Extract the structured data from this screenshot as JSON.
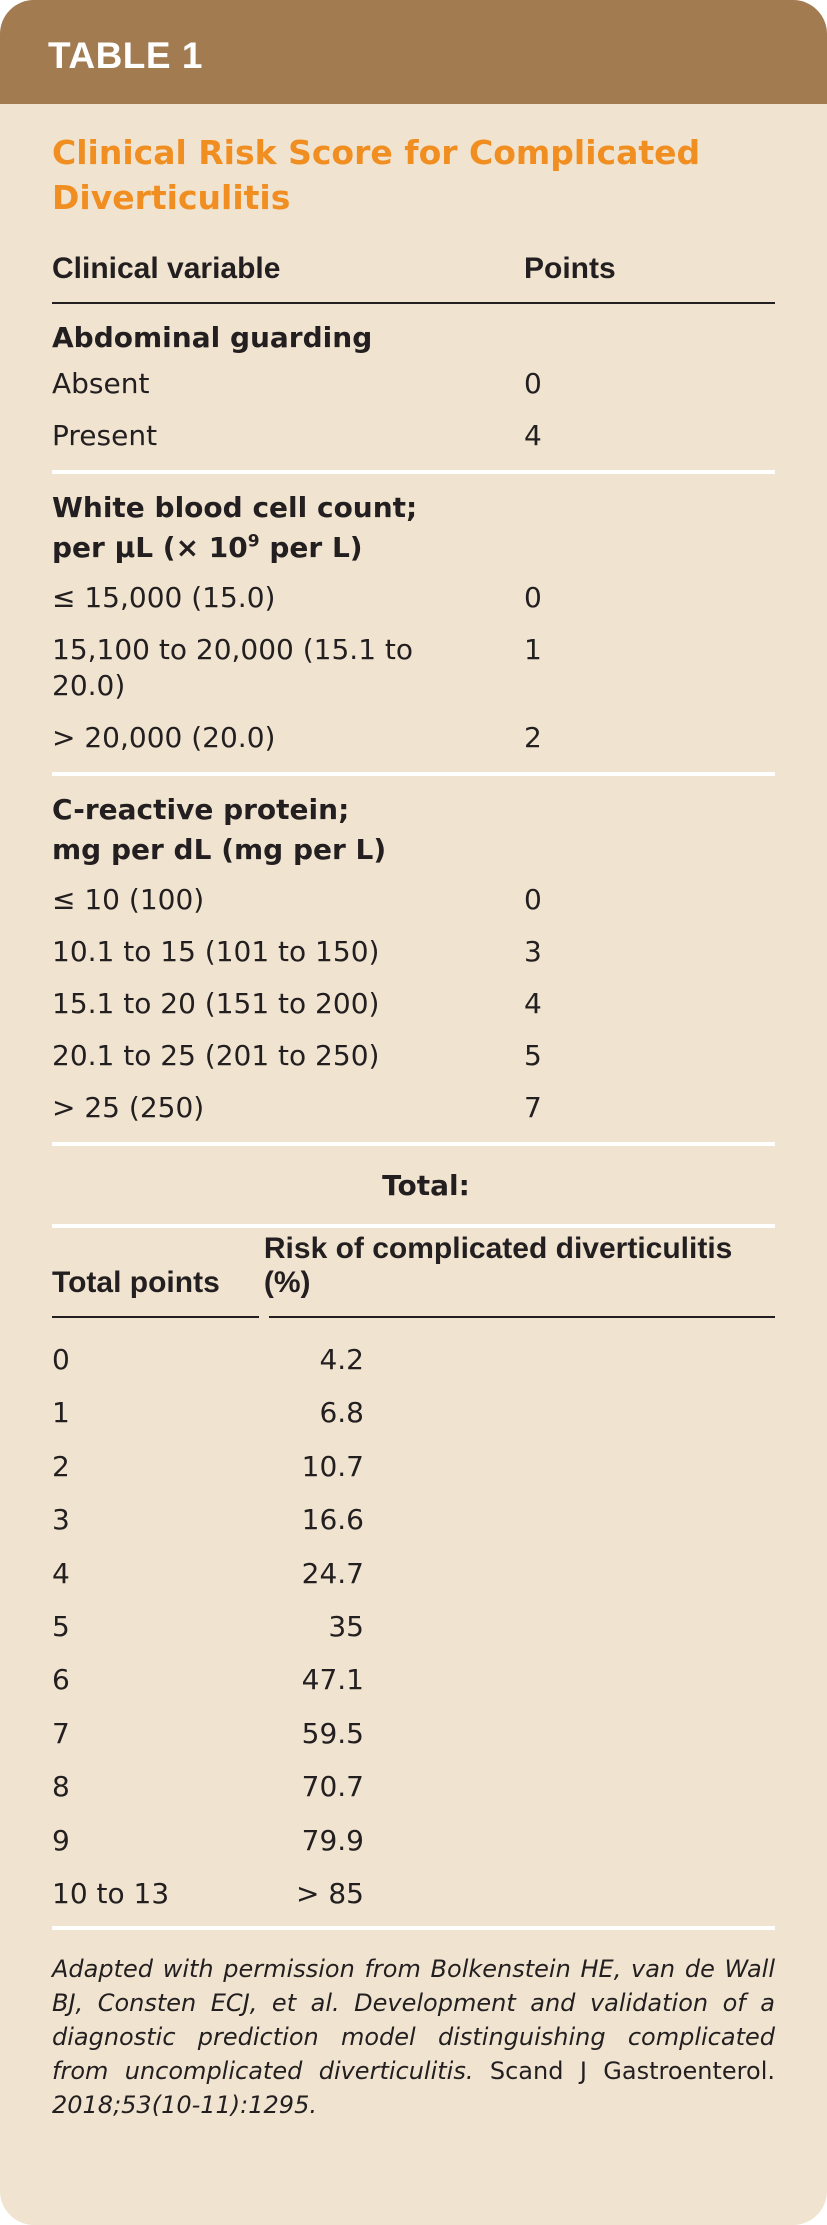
{
  "header": {
    "label": "TABLE 1"
  },
  "title": "Clinical Risk Score for Complicated Diverticulitis",
  "score_table": {
    "col_variable": "Clinical variable",
    "col_points": "Points",
    "groups": [
      {
        "heading": "Abdominal guarding",
        "rows": [
          {
            "label": "Absent",
            "points": "0"
          },
          {
            "label": "Present",
            "points": "4"
          }
        ]
      },
      {
        "heading_line1": "White blood cell count;",
        "heading_line2_a": "per μL (× 10",
        "heading_line2_sup": "9",
        "heading_line2_b": " per L)",
        "rows": [
          {
            "label": "≤ 15,000 (15.0)",
            "points": "0"
          },
          {
            "label": "15,100 to 20,000 (15.1 to 20.0)",
            "points": "1"
          },
          {
            "label": "> 20,000 (20.0)",
            "points": "2"
          }
        ]
      },
      {
        "heading_line1": "C-reactive protein;",
        "heading_line2": "mg per dL (mg per L)",
        "rows": [
          {
            "label": "≤ 10 (100)",
            "points": "0"
          },
          {
            "label": "10.1 to 15 (101 to 150)",
            "points": "3"
          },
          {
            "label": "15.1 to 20 (151 to 200)",
            "points": "4"
          },
          {
            "label": "20.1 to 25 (201 to 250)",
            "points": "5"
          },
          {
            "label": "> 25 (250)",
            "points": "7"
          }
        ]
      }
    ],
    "total_label": "Total:"
  },
  "risk_table": {
    "col_points": "Total points",
    "col_risk": "Risk of complicated diverticulitis (%)",
    "rows": [
      {
        "points": "0",
        "risk": "4.2"
      },
      {
        "points": "1",
        "risk": "6.8"
      },
      {
        "points": "2",
        "risk": "10.7"
      },
      {
        "points": "3",
        "risk": "16.6"
      },
      {
        "points": "4",
        "risk": "24.7"
      },
      {
        "points": "5",
        "risk": "35"
      },
      {
        "points": "6",
        "risk": "47.1"
      },
      {
        "points": "7",
        "risk": "59.5"
      },
      {
        "points": "8",
        "risk": "70.7"
      },
      {
        "points": "9",
        "risk": "79.9"
      },
      {
        "points": "10 to 13",
        "risk": "> 85"
      }
    ]
  },
  "footer": {
    "italic_a": "Adapted with permission from Bolkenstein HE, van de Wall BJ, Consten ECJ, et al. Development and validation of a diagnostic prediction model distinguishing complicated from uncomplicated diverticulitis.",
    "journal": " Scand J Gastroenterol.",
    "italic_b": " 2018;53(10-11):1295."
  },
  "colors": {
    "header_bg": "#a27b51",
    "card_bg": "#f0e4d0",
    "title": "#f18e22",
    "text": "#231f20"
  }
}
